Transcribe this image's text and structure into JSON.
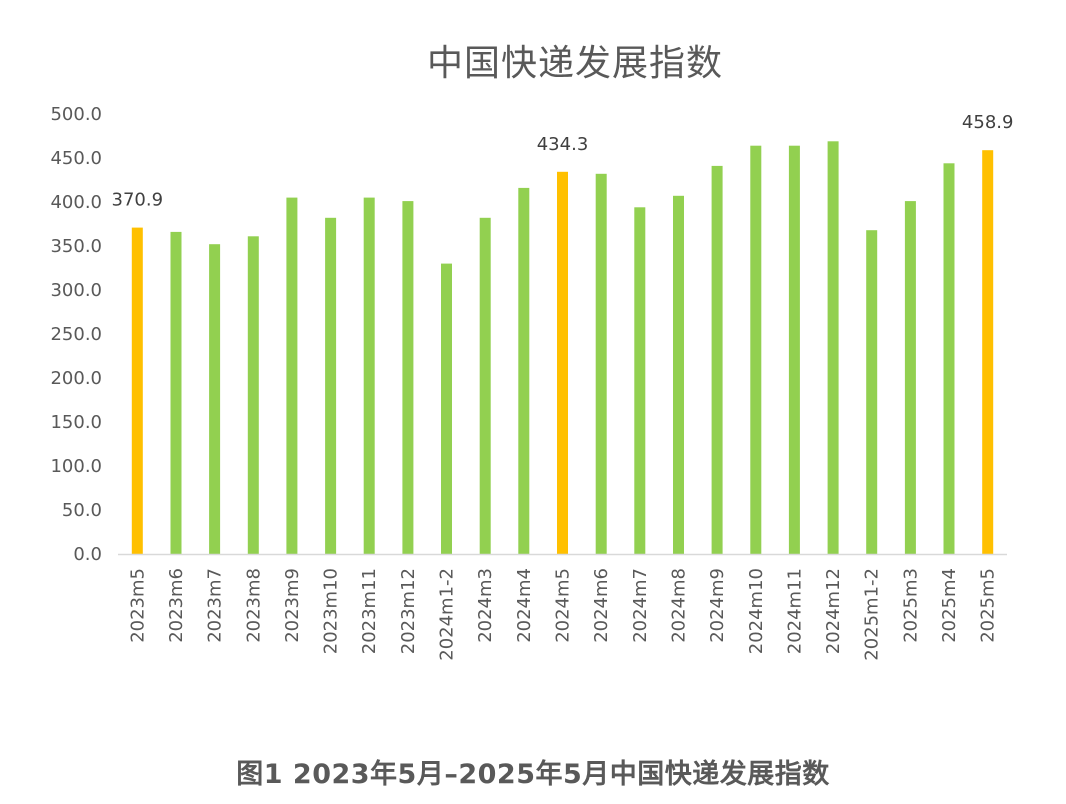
{
  "chart_data": {
    "type": "bar",
    "title": "中国快递发展指数",
    "xlabel": "",
    "ylabel": "",
    "ylim": [
      0,
      500
    ],
    "yticks": [
      "0.0",
      "50.0",
      "100.0",
      "150.0",
      "200.0",
      "250.0",
      "300.0",
      "350.0",
      "400.0",
      "450.0",
      "500.0"
    ],
    "grid": false,
    "legend": "none",
    "colors": {
      "normal": "#92d050",
      "highlight": "#ffc000",
      "axis": "#d9d9d9",
      "text": "#595959"
    },
    "categories": [
      "2023m5",
      "2023m6",
      "2023m7",
      "2023m8",
      "2023m9",
      "2023m10",
      "2023m11",
      "2023m12",
      "2024m1-2",
      "2024m3",
      "2024m4",
      "2024m5",
      "2024m6",
      "2024m7",
      "2024m8",
      "2024m9",
      "2024m10",
      "2024m11",
      "2024m12",
      "2025m1-2",
      "2025m3",
      "2025m4",
      "2025m5"
    ],
    "values": [
      370.9,
      366.0,
      352.0,
      361.0,
      405.0,
      382.0,
      405.0,
      401.0,
      330.0,
      382.0,
      416.0,
      434.3,
      432.0,
      394.0,
      407.0,
      441.0,
      464.0,
      464.0,
      469.0,
      368.0,
      401.0,
      444.0,
      458.9
    ],
    "highlighted": [
      true,
      false,
      false,
      false,
      false,
      false,
      false,
      false,
      false,
      false,
      false,
      true,
      false,
      false,
      false,
      false,
      false,
      false,
      false,
      false,
      false,
      false,
      true
    ],
    "data_labels": [
      "370.9",
      "",
      "",
      "",
      "",
      "",
      "",
      "",
      "",
      "",
      "",
      "434.3",
      "",
      "",
      "",
      "",
      "",
      "",
      "",
      "",
      "",
      "",
      "458.9"
    ]
  },
  "caption": "图1 2023年5月–2025年5月中国快递发展指数"
}
